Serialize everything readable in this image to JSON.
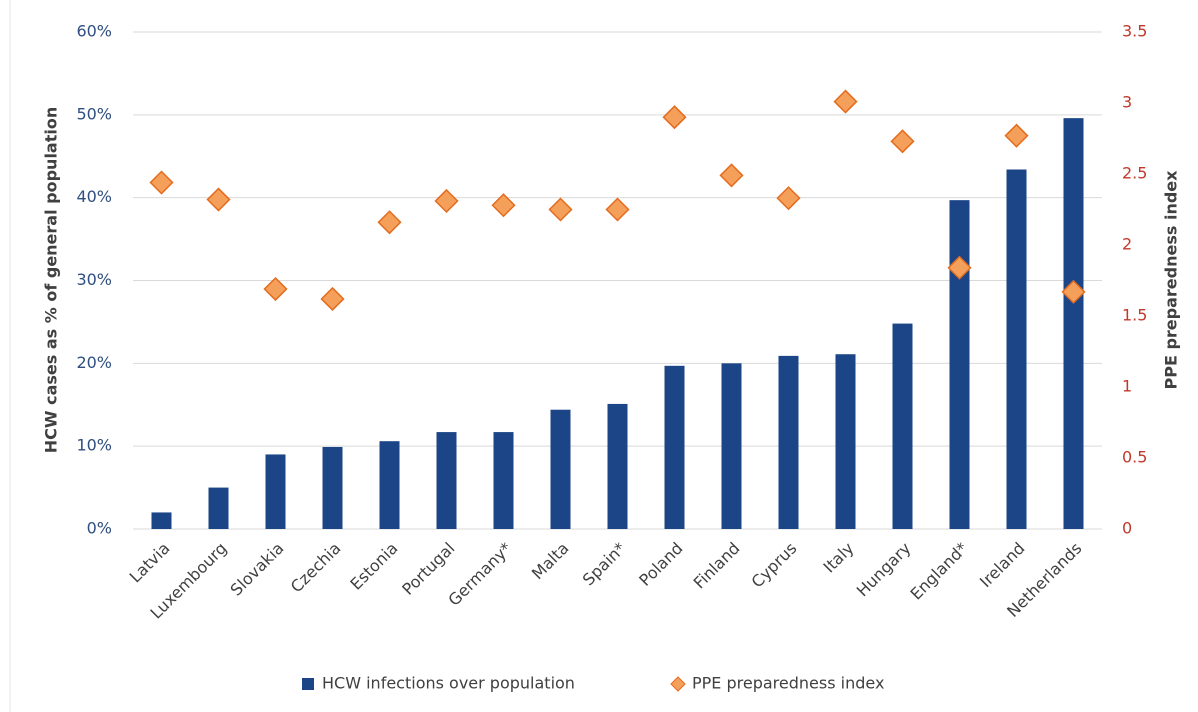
{
  "chart_data": {
    "type": "bar",
    "ylabel": "HCW cases as % of general population",
    "y2label": "PPE preparedness index",
    "categories": [
      "Latvia",
      "Luxembourg",
      "Slovakia",
      "Czechia",
      "Estonia",
      "Portugal",
      "Germany*",
      "Malta",
      "Spain*",
      "Poland",
      "Finland",
      "Cyprus",
      "Italy",
      "Hungary",
      "England*",
      "Ireland",
      "Netherlands"
    ],
    "series": [
      {
        "name": "HCW infections over population",
        "color": "#1b4586",
        "values": [
          2,
          5,
          9,
          9.9,
          10.6,
          11.7,
          11.7,
          14.4,
          15.1,
          19.7,
          20.0,
          20.9,
          21.1,
          24.8,
          39.7,
          43.4,
          49.6
        ]
      },
      {
        "name": "PPE preparedness index",
        "color": "#f5a05a",
        "axis": "y2",
        "marker": "diamond",
        "values": [
          2.44,
          2.32,
          1.69,
          1.62,
          2.16,
          2.31,
          2.28,
          2.25,
          2.25,
          2.9,
          2.49,
          2.33,
          3.01,
          2.73,
          1.84,
          2.77,
          1.67
        ]
      }
    ],
    "ylim": [
      0,
      60
    ],
    "yticks": [
      {
        "value": 0,
        "label": "0%"
      },
      {
        "value": 10,
        "label": "10%"
      },
      {
        "value": 20,
        "label": "20%"
      },
      {
        "value": 30,
        "label": "30%"
      },
      {
        "value": 40,
        "label": "40%"
      },
      {
        "value": 50,
        "label": "50%"
      },
      {
        "value": 60,
        "label": "60%"
      }
    ],
    "y2lim": [
      0,
      3.5
    ],
    "y2ticks": [
      0,
      0.5,
      1,
      1.5,
      2,
      2.5,
      3,
      3.5
    ],
    "grid": true,
    "legend": "bottom"
  }
}
